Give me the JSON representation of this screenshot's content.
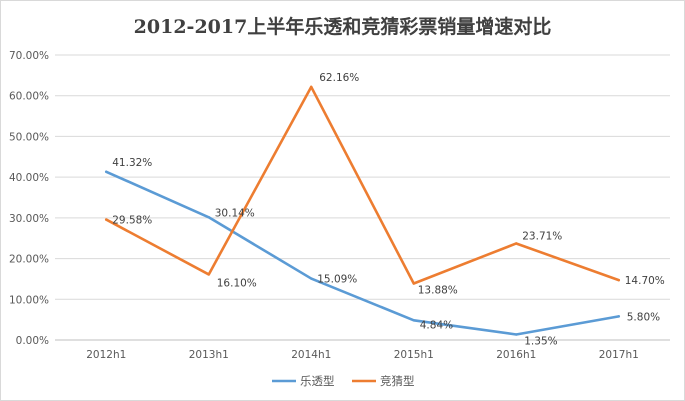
{
  "chart_data": {
    "type": "line",
    "title": "2012-2017上半年乐透和竞猜彩票销量增速对比",
    "categories": [
      "2012h1",
      "2013h1",
      "2014h1",
      "2015h1",
      "2016h1",
      "2017h1"
    ],
    "ylim": [
      0,
      70
    ],
    "yticks": [
      "0.00%",
      "10.00%",
      "20.00%",
      "30.00%",
      "40.00%",
      "50.00%",
      "60.00%",
      "70.00%"
    ],
    "grid": true,
    "legend_position": "bottom",
    "series": [
      {
        "name": "乐透型",
        "color": "#5b9bd5",
        "values": [
          41.32,
          30.14,
          15.09,
          4.84,
          1.35,
          5.8
        ],
        "labels": [
          "41.32%",
          "30.14%",
          "15.09%",
          "4.84%",
          "1.35%",
          "5.80%"
        ]
      },
      {
        "name": "竞猜型",
        "color": "#ed7d31",
        "values": [
          29.58,
          16.1,
          62.16,
          13.88,
          23.71,
          14.7
        ],
        "labels": [
          "29.58%",
          "16.10%",
          "62.16%",
          "13.88%",
          "23.71%",
          "14.70%"
        ]
      }
    ]
  }
}
